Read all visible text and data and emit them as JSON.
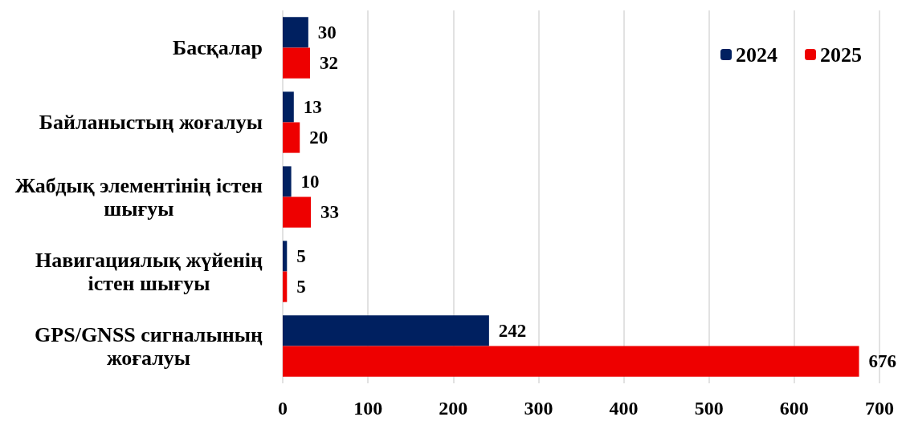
{
  "chart_data": {
    "type": "bar",
    "orientation": "horizontal",
    "categories": [
      "Басқалар",
      "Байланыстың жоғалуы",
      "Жабдық элементінің істен шығуы",
      "Навигациялық жүйенің істен шығуы",
      "GPS/GNSS сигналының жоғалуы"
    ],
    "series": [
      {
        "name": "2024",
        "color": "#002060",
        "values": [
          30,
          13,
          10,
          5,
          242
        ]
      },
      {
        "name": "2025",
        "color": "#ee0000",
        "values": [
          32,
          20,
          33,
          5,
          676
        ]
      }
    ],
    "xlim": [
      0,
      700
    ],
    "xticks": [
      0,
      100,
      200,
      300,
      400,
      500,
      600,
      700
    ],
    "grid": "x",
    "legend": "top right",
    "data_labels": true
  }
}
